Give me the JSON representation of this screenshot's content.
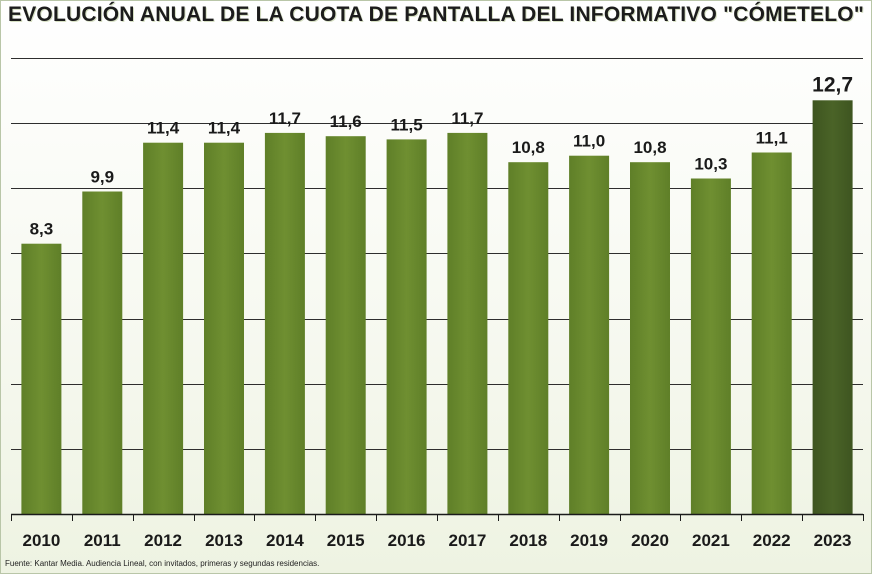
{
  "chart_data": {
    "type": "bar",
    "title": "EVOLUCIÓN ANUAL DE LA CUOTA DE PANTALLA DEL INFORMATIVO \"CÓMETELO\"",
    "categories": [
      "2010",
      "2011",
      "2012",
      "2013",
      "2014",
      "2015",
      "2016",
      "2017",
      "2018",
      "2019",
      "2020",
      "2021",
      "2022",
      "2023"
    ],
    "values": [
      8.3,
      9.9,
      11.4,
      11.4,
      11.7,
      11.6,
      11.5,
      11.7,
      10.8,
      11.0,
      10.8,
      10.3,
      11.1,
      12.7
    ],
    "labels": [
      "8,3",
      "9,9",
      "11,4",
      "11,4",
      "11,7",
      "11,6",
      "11,5",
      "11,7",
      "10,8",
      "11,0",
      "10,8",
      "10,3",
      "11,1",
      "12,7"
    ],
    "ylim": [
      0,
      14
    ],
    "grid": true,
    "xlabel": "",
    "ylabel": "",
    "highlight_index": 13,
    "colors": {
      "bar": "#6f8f31",
      "bar_highlight": "#4a6327",
      "grid": "#2e2e2e"
    }
  },
  "source": "Fuente: Kantar Media. Audiencia Lineal, con invitados, primeras y segundas residencias."
}
